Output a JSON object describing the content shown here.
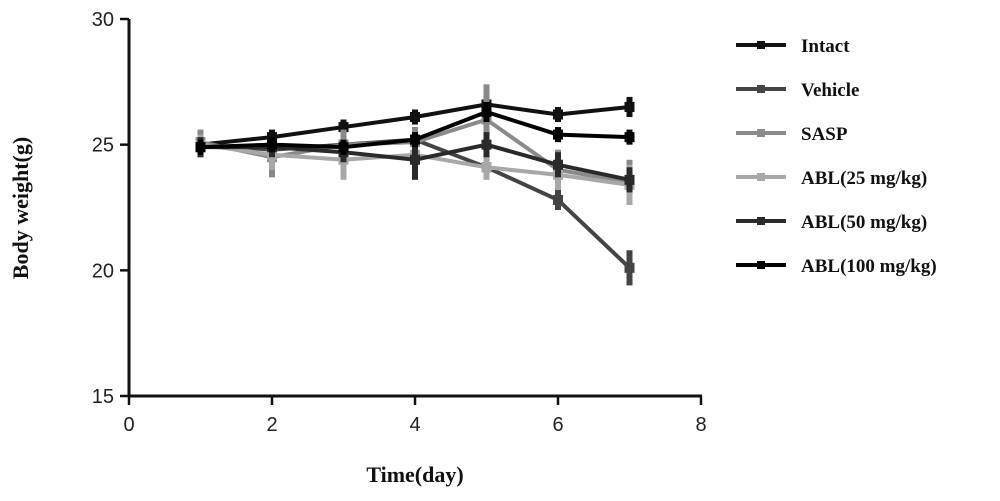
{
  "chart_data": {
    "type": "line",
    "title": "",
    "xlabel": "Time(day)",
    "ylabel": "Body weight(g)",
    "xlim": [
      0,
      8
    ],
    "ylim": [
      15,
      30
    ],
    "xticks": [
      "0",
      "2",
      "4",
      "6",
      "8"
    ],
    "yticks": [
      "15",
      "20",
      "25",
      "30"
    ],
    "x": [
      1,
      2,
      3,
      4,
      5,
      6,
      7
    ],
    "legend_position": "right",
    "series": [
      {
        "name": "Intact",
        "color": "#111111",
        "values": [
          25.0,
          25.3,
          25.7,
          26.1,
          26.6,
          26.2,
          26.5
        ],
        "error": [
          0.3,
          0.3,
          0.3,
          0.3,
          0.4,
          0.3,
          0.4
        ]
      },
      {
        "name": "Vehicle",
        "color": "#444444",
        "values": [
          25.0,
          24.8,
          25.0,
          25.2,
          24.1,
          22.8,
          20.1
        ],
        "error": [
          0.5,
          0.4,
          0.5,
          0.5,
          0.4,
          0.4,
          0.7
        ]
      },
      {
        "name": "SASP",
        "color": "#8a8a8a",
        "values": [
          25.1,
          24.5,
          25.0,
          25.1,
          26.0,
          24.0,
          23.5
        ],
        "error": [
          0.5,
          0.8,
          0.6,
          0.6,
          1.4,
          0.8,
          0.9
        ]
      },
      {
        "name": "ABL(25 mg/kg)",
        "color": "#a8a8a8",
        "values": [
          25.0,
          24.6,
          24.4,
          24.6,
          24.1,
          23.8,
          23.4
        ],
        "error": [
          0.4,
          0.6,
          0.8,
          0.5,
          0.5,
          0.6,
          0.8
        ]
      },
      {
        "name": "ABL(50 mg/kg)",
        "color": "#2a2a2a",
        "values": [
          24.9,
          24.9,
          24.7,
          24.4,
          25.0,
          24.2,
          23.6
        ],
        "error": [
          0.4,
          0.4,
          0.4,
          0.8,
          0.5,
          0.5,
          0.5
        ]
      },
      {
        "name": "ABL(100 mg/kg)",
        "color": "#000000",
        "values": [
          24.9,
          25.0,
          24.9,
          25.2,
          26.3,
          25.4,
          25.3
        ],
        "error": [
          0.3,
          0.3,
          0.3,
          0.3,
          0.4,
          0.3,
          0.3
        ]
      }
    ]
  }
}
